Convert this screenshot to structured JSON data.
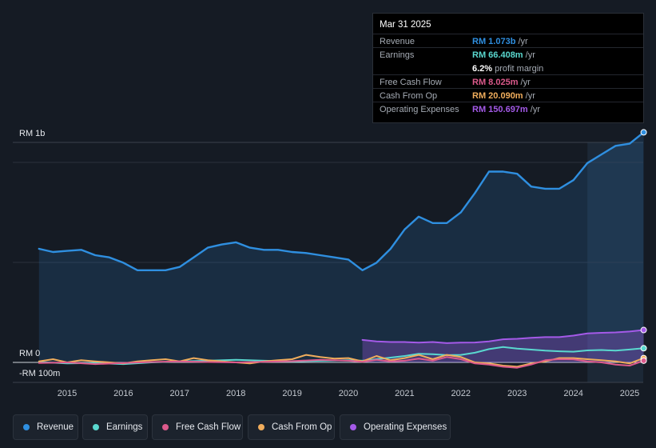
{
  "tooltip": {
    "date": "Mar 31 2025",
    "rows": [
      {
        "label": "Revenue",
        "value": "RM 1.073b",
        "unit": "/yr",
        "color": "#2f8fe0"
      },
      {
        "label": "Earnings",
        "value": "RM 66.408m",
        "unit": "/yr",
        "color": "#5ad8cf"
      },
      {
        "label": "",
        "value": "6.2%",
        "unit": "profit margin",
        "color": "#ffffff"
      },
      {
        "label": "Free Cash Flow",
        "value": "RM 8.025m",
        "unit": "/yr",
        "color": "#dc5a8c"
      },
      {
        "label": "Cash From Op",
        "value": "RM 20.090m",
        "unit": "/yr",
        "color": "#f0ad5c"
      },
      {
        "label": "Operating Expenses",
        "value": "RM 150.697m",
        "unit": "/yr",
        "color": "#a45ae8"
      }
    ]
  },
  "legend": [
    {
      "label": "Revenue",
      "color": "#2f8fe0"
    },
    {
      "label": "Earnings",
      "color": "#5ad8cf"
    },
    {
      "label": "Free Cash Flow",
      "color": "#dc5a8c"
    },
    {
      "label": "Cash From Op",
      "color": "#f0ad5c"
    },
    {
      "label": "Operating Expenses",
      "color": "#a45ae8"
    }
  ],
  "chart_data": {
    "type": "line",
    "title": "",
    "xlabel": "",
    "ylabel": "",
    "unit": "RM millions",
    "xlim": [
      2014.5,
      2025.25
    ],
    "ylim": [
      -100,
      1000
    ],
    "y_tick_labels": [
      {
        "value": 1000,
        "label": "RM 1b"
      },
      {
        "value": 0,
        "label": "RM 0"
      },
      {
        "value": -100,
        "label": "-RM 100m"
      }
    ],
    "x_ticks": [
      2015,
      2016,
      2017,
      2018,
      2019,
      2020,
      2021,
      2022,
      2023,
      2024,
      2025
    ],
    "x_tick_labels": [
      "2015",
      "2016",
      "2017",
      "2018",
      "2019",
      "2020",
      "2021",
      "2022",
      "2023",
      "2024",
      "2025"
    ],
    "highlight_start": 2024.25,
    "series": [
      {
        "name": "Revenue",
        "color": "#2f8fe0",
        "fill": true,
        "x": [
          2014.5,
          2014.75,
          2015.0,
          2015.25,
          2015.5,
          2015.75,
          2016.0,
          2016.25,
          2016.5,
          2016.75,
          2017.0,
          2017.25,
          2017.5,
          2017.75,
          2018.0,
          2018.25,
          2018.5,
          2018.75,
          2019.0,
          2019.25,
          2019.5,
          2019.75,
          2020.0,
          2020.25,
          2020.5,
          2020.75,
          2021.0,
          2021.25,
          2021.5,
          2021.75,
          2022.0,
          2022.25,
          2022.5,
          2022.75,
          2023.0,
          2023.25,
          2023.5,
          2023.75,
          2024.0,
          2024.25,
          2024.5,
          2024.75,
          2025.0,
          2025.25
        ],
        "y": [
          530,
          515,
          520,
          525,
          500,
          490,
          465,
          430,
          430,
          430,
          445,
          490,
          535,
          550,
          560,
          535,
          525,
          525,
          515,
          510,
          500,
          490,
          480,
          430,
          465,
          530,
          620,
          680,
          650,
          650,
          700,
          790,
          890,
          890,
          880,
          820,
          810,
          810,
          850,
          930,
          970,
          1010,
          1020,
          1073
        ]
      },
      {
        "name": "Earnings",
        "color": "#5ad8cf",
        "fill": false,
        "x": [
          2014.5,
          2015.0,
          2015.5,
          2016.0,
          2016.5,
          2017.0,
          2017.5,
          2018.0,
          2018.5,
          2019.0,
          2019.5,
          2020.0,
          2020.25,
          2020.5,
          2021.0,
          2021.25,
          2021.5,
          2021.75,
          2022.0,
          2022.25,
          2022.5,
          2022.75,
          2023.0,
          2023.5,
          2023.75,
          2024.0,
          2024.25,
          2024.5,
          2024.75,
          2025.0,
          2025.25
        ],
        "y": [
          2,
          -5,
          -3,
          -8,
          0,
          5,
          8,
          12,
          8,
          5,
          8,
          10,
          8,
          15,
          30,
          40,
          38,
          34,
          35,
          45,
          62,
          72,
          64,
          55,
          52,
          50,
          56,
          58,
          55,
          60,
          66
        ]
      },
      {
        "name": "Free Cash Flow",
        "color": "#dc5a8c",
        "fill": false,
        "x": [
          2014.5,
          2015.0,
          2015.5,
          2016.0,
          2016.5,
          2017.0,
          2017.5,
          2018.0,
          2018.5,
          2019.0,
          2019.5,
          2020.0,
          2020.25,
          2020.5,
          2020.75,
          2021.0,
          2021.25,
          2021.5,
          2021.75,
          2022.0,
          2022.25,
          2022.5,
          2022.75,
          2023.0,
          2023.25,
          2023.5,
          2023.75,
          2024.0,
          2024.25,
          2024.5,
          2024.75,
          2025.0,
          2025.25
        ],
        "y": [
          -3,
          0,
          -8,
          -3,
          2,
          5,
          2,
          0,
          3,
          6,
          12,
          8,
          3,
          12,
          5,
          8,
          18,
          8,
          25,
          15,
          -5,
          -10,
          -20,
          -25,
          -10,
          10,
          15,
          14,
          5,
          0,
          -10,
          -15,
          8
        ]
      },
      {
        "name": "Cash From Op",
        "color": "#f0ad5c",
        "fill": false,
        "x": [
          2014.5,
          2014.75,
          2015.0,
          2015.25,
          2015.5,
          2016.0,
          2016.25,
          2016.5,
          2016.75,
          2017.0,
          2017.25,
          2017.5,
          2017.75,
          2018.0,
          2018.25,
          2018.5,
          2018.75,
          2019.0,
          2019.25,
          2019.5,
          2019.75,
          2020.0,
          2020.25,
          2020.5,
          2020.75,
          2021.0,
          2021.25,
          2021.5,
          2021.75,
          2022.0,
          2022.25,
          2022.5,
          2022.75,
          2023.0,
          2023.25,
          2023.5,
          2023.75,
          2024.0,
          2024.25,
          2024.5,
          2024.75,
          2025.0,
          2025.25
        ],
        "y": [
          5,
          15,
          0,
          10,
          5,
          -5,
          5,
          10,
          15,
          5,
          20,
          10,
          5,
          0,
          -5,
          5,
          10,
          15,
          35,
          25,
          18,
          20,
          5,
          30,
          10,
          20,
          35,
          15,
          35,
          25,
          0,
          -5,
          -15,
          -20,
          -5,
          5,
          20,
          20,
          15,
          10,
          5,
          -5,
          20
        ]
      },
      {
        "name": "Operating Expenses",
        "color": "#a45ae8",
        "fill": true,
        "x": [
          2020.25,
          2020.5,
          2020.75,
          2021.0,
          2021.25,
          2021.5,
          2021.75,
          2022.0,
          2022.25,
          2022.5,
          2022.75,
          2023.0,
          2023.25,
          2023.5,
          2023.75,
          2024.0,
          2024.25,
          2024.5,
          2024.75,
          2025.0,
          2025.25
        ],
        "y": [
          105,
          98,
          95,
          95,
          92,
          95,
          90,
          92,
          93,
          98,
          108,
          110,
          115,
          118,
          118,
          125,
          135,
          138,
          140,
          144,
          151
        ]
      }
    ]
  }
}
